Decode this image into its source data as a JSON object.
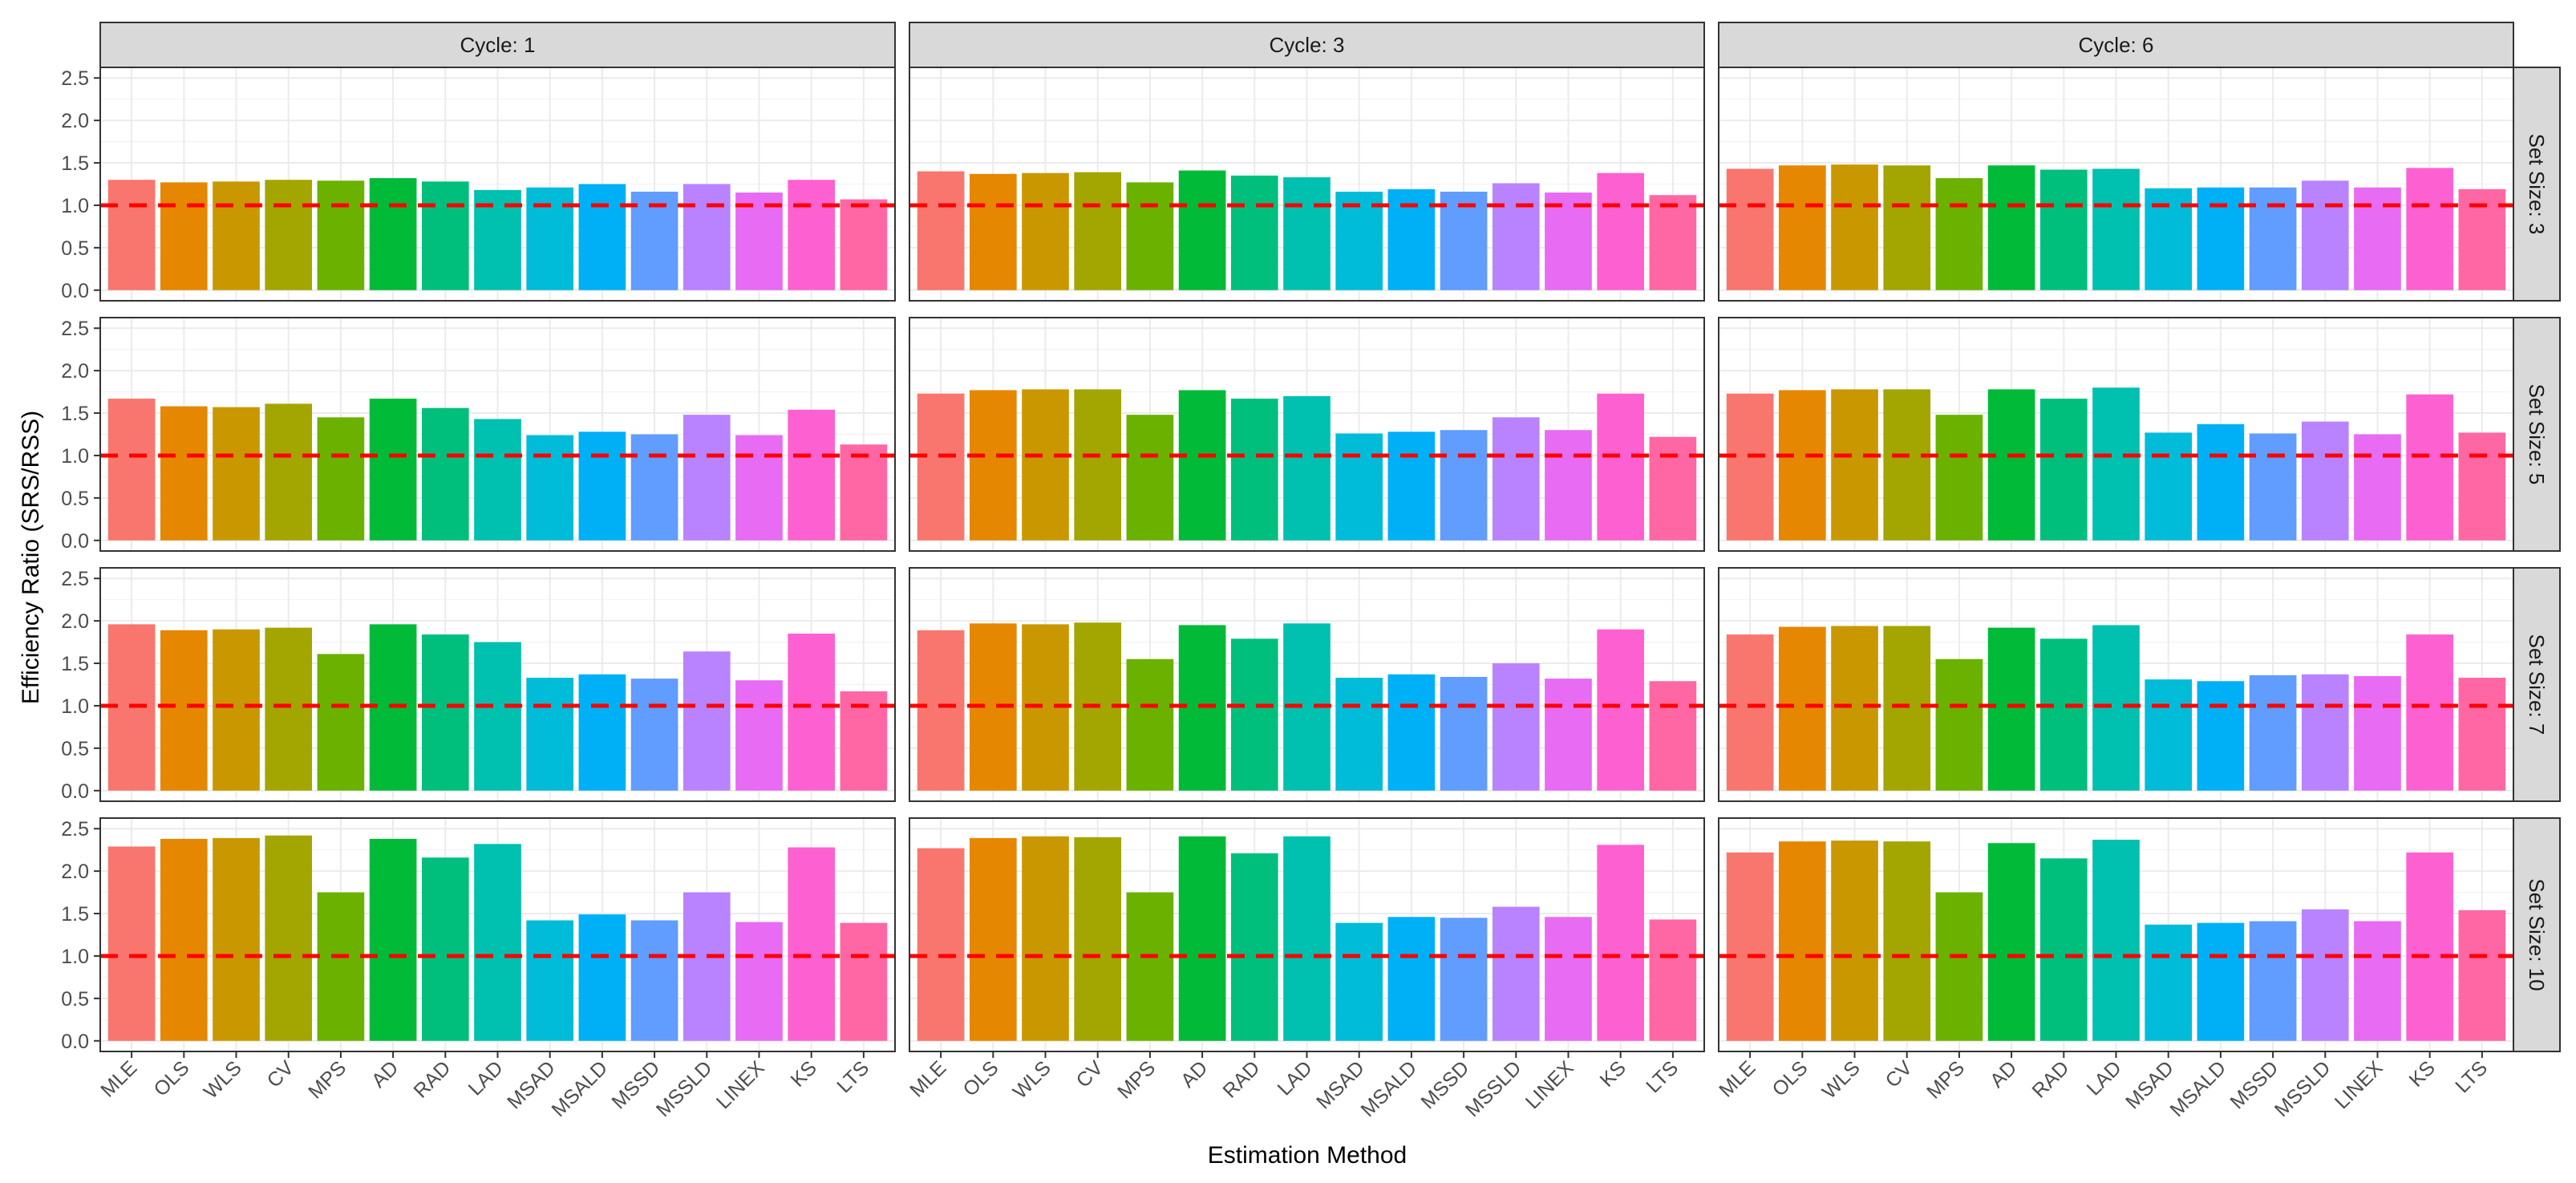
{
  "chart_data": {
    "type": "bar",
    "layout": "facet-grid",
    "xlabel": "Estimation Method",
    "ylabel": "Efficiency Ratio (SRS/RSS)",
    "ylim": [
      0,
      2.5
    ],
    "yticks": [
      "0.0",
      "0.5",
      "1.0",
      "1.5",
      "2.0",
      "2.5"
    ],
    "grid": true,
    "reference_line": {
      "value": 1.0,
      "style": "dashed",
      "color": "#ff0000"
    },
    "facet_columns": [
      "Cycle: 1",
      "Cycle: 3",
      "Cycle: 6"
    ],
    "facet_rows": [
      "Set Size: 3",
      "Set Size: 5",
      "Set Size: 7",
      "Set Size: 10"
    ],
    "categories": [
      "MLE",
      "OLS",
      "WLS",
      "CV",
      "MPS",
      "AD",
      "RAD",
      "LAD",
      "MSAD",
      "MSALD",
      "MSSD",
      "MSSLD",
      "LINEX",
      "KS",
      "LTS"
    ],
    "colors": [
      "#F8766D",
      "#E58700",
      "#C99800",
      "#A3A500",
      "#6BB100",
      "#00BA38",
      "#00BF7D",
      "#00C0AF",
      "#00BCD8",
      "#00B0F6",
      "#619CFF",
      "#B983FF",
      "#E76BF3",
      "#FD61D1",
      "#FF67A4"
    ],
    "panels": [
      [
        {
          "values": [
            1.3,
            1.27,
            1.28,
            1.3,
            1.29,
            1.32,
            1.28,
            1.18,
            1.21,
            1.25,
            1.16,
            1.25,
            1.15,
            1.3,
            1.07
          ]
        },
        {
          "values": [
            1.4,
            1.37,
            1.38,
            1.39,
            1.27,
            1.41,
            1.35,
            1.33,
            1.16,
            1.19,
            1.16,
            1.26,
            1.15,
            1.38,
            1.12
          ]
        },
        {
          "values": [
            1.43,
            1.47,
            1.48,
            1.47,
            1.32,
            1.47,
            1.42,
            1.43,
            1.2,
            1.21,
            1.21,
            1.29,
            1.21,
            1.44,
            1.19
          ]
        }
      ],
      [
        {
          "values": [
            1.67,
            1.58,
            1.57,
            1.61,
            1.45,
            1.67,
            1.56,
            1.43,
            1.24,
            1.28,
            1.25,
            1.48,
            1.24,
            1.54,
            1.13
          ]
        },
        {
          "values": [
            1.73,
            1.77,
            1.78,
            1.78,
            1.48,
            1.77,
            1.67,
            1.7,
            1.26,
            1.28,
            1.3,
            1.45,
            1.3,
            1.73,
            1.22
          ]
        },
        {
          "values": [
            1.73,
            1.77,
            1.78,
            1.78,
            1.48,
            1.78,
            1.67,
            1.8,
            1.27,
            1.37,
            1.26,
            1.4,
            1.25,
            1.72,
            1.27
          ]
        }
      ],
      [
        {
          "values": [
            1.96,
            1.89,
            1.9,
            1.92,
            1.61,
            1.96,
            1.84,
            1.75,
            1.33,
            1.37,
            1.32,
            1.64,
            1.3,
            1.85,
            1.17
          ]
        },
        {
          "values": [
            1.89,
            1.97,
            1.96,
            1.98,
            1.55,
            1.95,
            1.79,
            1.97,
            1.33,
            1.37,
            1.34,
            1.5,
            1.32,
            1.9,
            1.29
          ]
        },
        {
          "values": [
            1.84,
            1.93,
            1.94,
            1.94,
            1.55,
            1.92,
            1.79,
            1.95,
            1.31,
            1.29,
            1.36,
            1.37,
            1.35,
            1.84,
            1.33
          ]
        }
      ],
      [
        {
          "values": [
            2.29,
            2.38,
            2.39,
            2.42,
            1.75,
            2.38,
            2.16,
            2.32,
            1.42,
            1.49,
            1.42,
            1.75,
            1.4,
            2.28,
            1.39
          ]
        },
        {
          "values": [
            2.27,
            2.39,
            2.41,
            2.4,
            1.75,
            2.41,
            2.21,
            2.41,
            1.39,
            1.46,
            1.45,
            1.58,
            1.46,
            2.31,
            1.43
          ]
        },
        {
          "values": [
            2.22,
            2.35,
            2.36,
            2.35,
            1.75,
            2.33,
            2.15,
            2.37,
            1.37,
            1.39,
            1.41,
            1.55,
            1.41,
            2.22,
            1.54
          ]
        }
      ]
    ]
  }
}
